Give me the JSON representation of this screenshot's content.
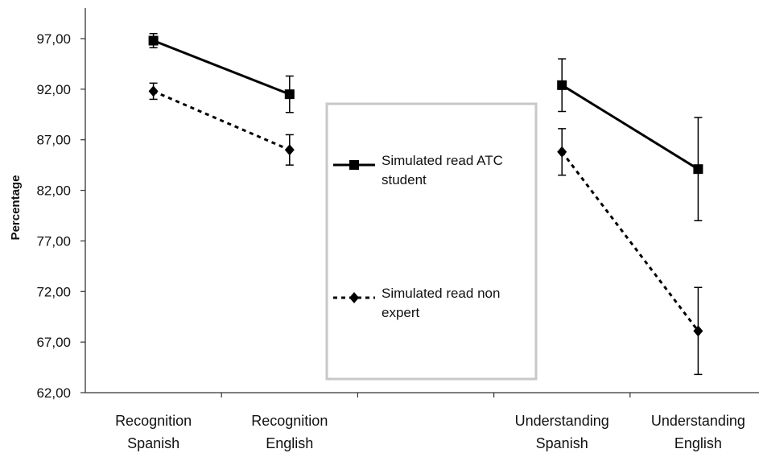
{
  "chart_data": {
    "type": "line",
    "ylabel": "Percentage",
    "ylim": [
      62,
      100
    ],
    "yticks": [
      "62,00",
      "67,00",
      "72,00",
      "77,00",
      "82,00",
      "87,00",
      "92,00",
      "97,00"
    ],
    "categories": [
      [
        "Recognition",
        "Spanish"
      ],
      [
        "Recognition",
        "English"
      ],
      [
        "",
        ""
      ],
      [
        "Understanding",
        "Spanish"
      ],
      [
        "Understanding",
        "English"
      ]
    ],
    "grid": false,
    "legend_position": "center",
    "series": [
      {
        "name": [
          "Simulated read ATC",
          "student"
        ],
        "style": "solid",
        "marker": "square",
        "segments": [
          [
            {
              "x": 0,
              "y": 96.8,
              "err": 0.7
            },
            {
              "x": 1,
              "y": 91.5,
              "err": 1.8
            }
          ],
          [
            {
              "x": 3,
              "y": 92.4,
              "err": 2.6
            },
            {
              "x": 4,
              "y": 84.1,
              "err": 5.1
            }
          ]
        ]
      },
      {
        "name": [
          "Simulated read non",
          "expert"
        ],
        "style": "dashed",
        "marker": "diamond",
        "segments": [
          [
            {
              "x": 0,
              "y": 91.8,
              "err": 0.8
            },
            {
              "x": 1,
              "y": 86.0,
              "err": 1.5
            }
          ],
          [
            {
              "x": 3,
              "y": 85.8,
              "err": 2.3
            },
            {
              "x": 4,
              "y": 68.1,
              "err": 4.3
            }
          ]
        ]
      }
    ]
  }
}
